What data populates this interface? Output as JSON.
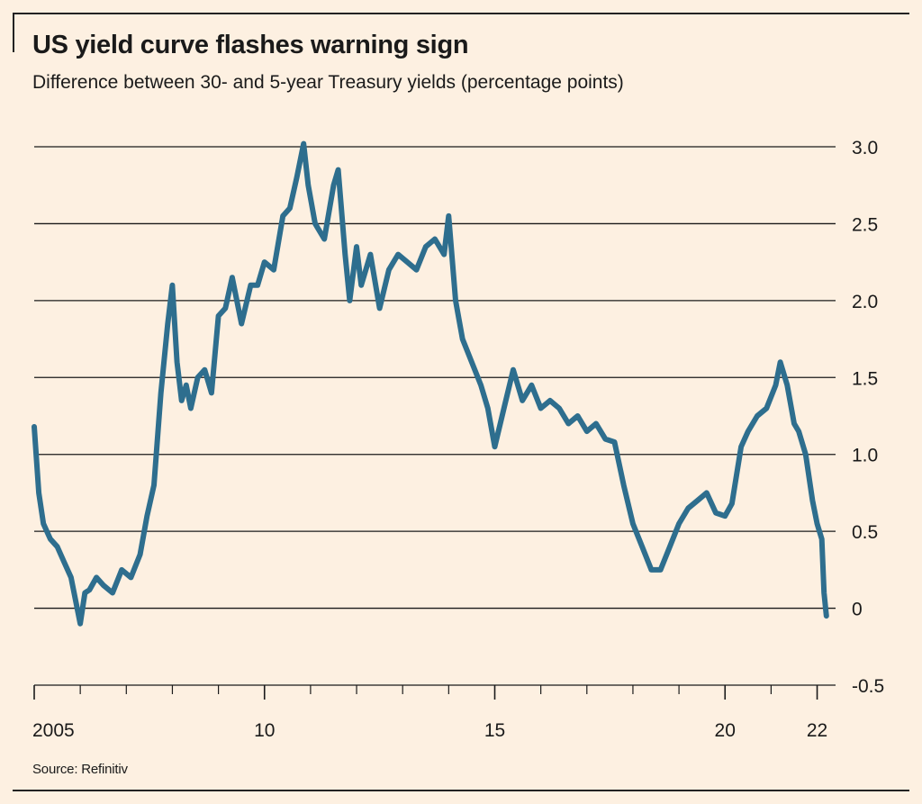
{
  "chart_data": {
    "type": "line",
    "title": "US yield curve flashes warning sign",
    "subtitle": "Difference between 30- and 5-year Treasury yields (percentage points)",
    "source": "Source: Refinitiv",
    "xlabel": "",
    "ylabel": "",
    "xlim": [
      2005,
      2022.4
    ],
    "ylim": [
      -0.5,
      3.0
    ],
    "y_ticks": [
      3.0,
      2.5,
      2.0,
      1.5,
      1.0,
      0.5,
      0,
      -0.5
    ],
    "y_tick_labels": [
      "3.0",
      "2.5",
      "2.0",
      "1.5",
      "1.0",
      "0.5",
      "0",
      "-0.5"
    ],
    "x_tick_labels": [
      {
        "x": 2005,
        "label": "2005"
      },
      {
        "x": 2010,
        "label": "10"
      },
      {
        "x": 2015,
        "label": "15"
      },
      {
        "x": 2020,
        "label": "20"
      },
      {
        "x": 2022,
        "label": "22"
      }
    ],
    "grid": true,
    "series": [
      {
        "name": "30-year minus 5-year Treasury yield",
        "color": "#2e6e8e",
        "x": [
          2005.0,
          2005.1,
          2005.2,
          2005.35,
          2005.5,
          2005.65,
          2005.8,
          2006.0,
          2006.1,
          2006.2,
          2006.35,
          2006.5,
          2006.7,
          2006.9,
          2007.1,
          2007.3,
          2007.45,
          2007.6,
          2007.75,
          2007.9,
          2008.0,
          2008.1,
          2008.2,
          2008.3,
          2008.4,
          2008.55,
          2008.7,
          2008.85,
          2009.0,
          2009.15,
          2009.3,
          2009.5,
          2009.7,
          2009.85,
          2010.0,
          2010.2,
          2010.4,
          2010.55,
          2010.7,
          2010.85,
          2010.95,
          2011.1,
          2011.3,
          2011.5,
          2011.6,
          2011.75,
          2011.85,
          2012.0,
          2012.1,
          2012.3,
          2012.5,
          2012.7,
          2012.9,
          2013.1,
          2013.3,
          2013.5,
          2013.7,
          2013.9,
          2014.0,
          2014.15,
          2014.3,
          2014.5,
          2014.7,
          2014.85,
          2015.0,
          2015.2,
          2015.4,
          2015.6,
          2015.8,
          2016.0,
          2016.2,
          2016.4,
          2016.6,
          2016.8,
          2017.0,
          2017.2,
          2017.4,
          2017.6,
          2017.8,
          2018.0,
          2018.2,
          2018.4,
          2018.6,
          2018.8,
          2019.0,
          2019.2,
          2019.4,
          2019.6,
          2019.8,
          2020.0,
          2020.15,
          2020.35,
          2020.5,
          2020.7,
          2020.9,
          2021.1,
          2021.2,
          2021.35,
          2021.5,
          2021.6,
          2021.75,
          2021.9,
          2022.0,
          2022.1,
          2022.15,
          2022.2
        ],
        "values": [
          1.18,
          0.75,
          0.55,
          0.45,
          0.4,
          0.3,
          0.2,
          -0.1,
          0.1,
          0.12,
          0.2,
          0.15,
          0.1,
          0.25,
          0.2,
          0.35,
          0.6,
          0.8,
          1.4,
          1.85,
          2.1,
          1.6,
          1.35,
          1.45,
          1.3,
          1.5,
          1.55,
          1.4,
          1.9,
          1.95,
          2.15,
          1.85,
          2.1,
          2.1,
          2.25,
          2.2,
          2.55,
          2.6,
          2.8,
          3.02,
          2.75,
          2.5,
          2.4,
          2.75,
          2.85,
          2.3,
          2.0,
          2.35,
          2.1,
          2.3,
          1.95,
          2.2,
          2.3,
          2.25,
          2.2,
          2.35,
          2.4,
          2.3,
          2.55,
          2.0,
          1.75,
          1.6,
          1.45,
          1.3,
          1.05,
          1.3,
          1.55,
          1.35,
          1.45,
          1.3,
          1.35,
          1.3,
          1.2,
          1.25,
          1.15,
          1.2,
          1.1,
          1.08,
          0.8,
          0.55,
          0.4,
          0.25,
          0.25,
          0.4,
          0.55,
          0.65,
          0.7,
          0.75,
          0.62,
          0.6,
          0.68,
          1.05,
          1.15,
          1.25,
          1.3,
          1.45,
          1.6,
          1.45,
          1.2,
          1.15,
          1.0,
          0.7,
          0.55,
          0.45,
          0.1,
          -0.05
        ]
      }
    ]
  }
}
